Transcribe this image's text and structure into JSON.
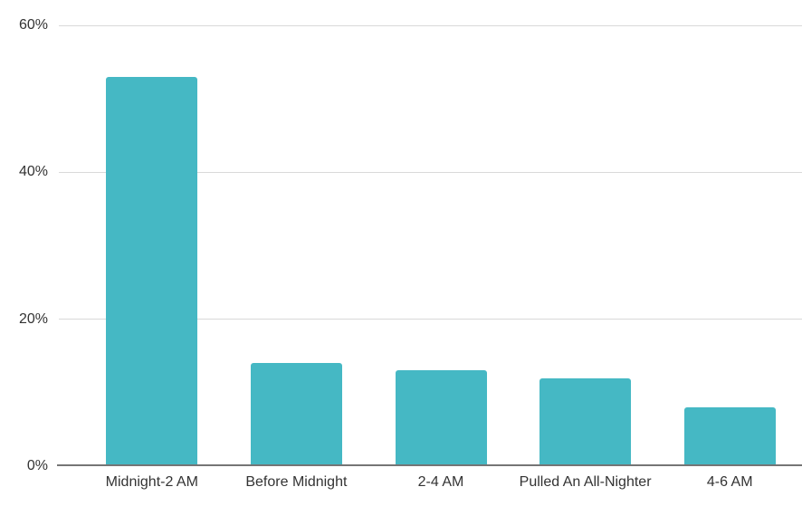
{
  "chart_data": {
    "type": "bar",
    "title": "",
    "xlabel": "",
    "ylabel": "",
    "categories": [
      "Midnight-2 AM",
      "Before Midnight",
      "2-4 AM",
      "Pulled An All-Nighter",
      "4-6 AM"
    ],
    "values": [
      53,
      14,
      13,
      12,
      8
    ],
    "value_unit": "%",
    "ylim": [
      0,
      60
    ],
    "yticks": [
      0,
      20,
      40,
      60
    ],
    "ytick_labels": [
      "0%",
      "20%",
      "40%",
      "60%"
    ],
    "grid": true,
    "legend": false,
    "colors": {
      "bar": "#45b8c4",
      "gridline": "#d9d9d9",
      "axis_line": "#757575",
      "label": "#333333",
      "background": "#ffffff"
    }
  }
}
